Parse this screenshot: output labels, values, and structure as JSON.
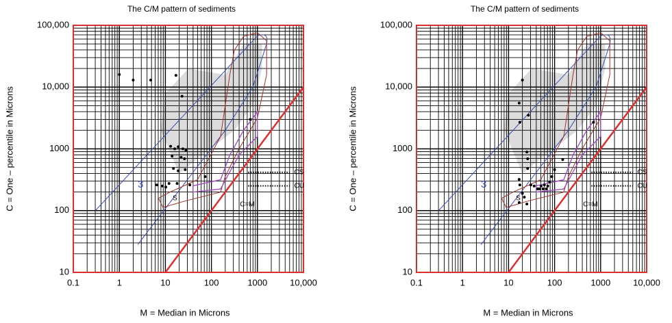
{
  "chart_data": [
    {
      "type": "scatter",
      "title": "The C/M pattern of sediments",
      "xlabel": "M = Median in Microns",
      "ylabel": "C = One  –  percentile  in  Microns",
      "xscale": "log",
      "yscale": "log",
      "xlim": [
        0.1,
        10000
      ],
      "ylim": [
        10,
        100000
      ],
      "xticks": [
        0.1,
        1,
        10,
        100,
        1000,
        {
          "value": 10000,
          "label": "10,000"
        }
      ],
      "yticks": [
        10,
        100,
        1000,
        {
          "value": 10000,
          "label": "10,000"
        },
        {
          "value": 100000,
          "label": "100,000"
        }
      ],
      "grid": true,
      "minor_grid": true,
      "color": "#000000",
      "annotations": [
        "3",
        "S",
        "CS",
        "CU",
        "C=M"
      ],
      "x": [
        1,
        2,
        4.8,
        17,
        23,
        13,
        16,
        19,
        24,
        28,
        14,
        22,
        26,
        15,
        19,
        27,
        6.5,
        8.6,
        10.2,
        12,
        18,
        34,
        73,
        700
      ],
      "values": [
        16000,
        13000,
        13000,
        15500,
        7100,
        1100,
        1000,
        1080,
        1000,
        940,
        760,
        730,
        690,
        480,
        440,
        460,
        260,
        250,
        240,
        275,
        275,
        260,
        355,
        3000
      ]
    },
    {
      "type": "scatter",
      "title": "The C/M pattern of sediments",
      "xlabel": "M = Median in Microns",
      "ylabel": "C = One  –  percentile  in  Microns",
      "xscale": "log",
      "yscale": "log",
      "xlim": [
        0.1,
        10000
      ],
      "ylim": [
        10,
        100000
      ],
      "xticks": [
        0.1,
        1,
        10,
        100,
        1000,
        {
          "value": 10000,
          "label": "10,000"
        }
      ],
      "yticks": [
        10,
        100,
        1000,
        {
          "value": 10000,
          "label": "10,000"
        },
        {
          "value": 100000,
          "label": "100,000"
        }
      ],
      "grid": true,
      "minor_grid": true,
      "color": "#000000",
      "annotations": [
        "3",
        "S",
        "CS",
        "CU",
        "C=M"
      ],
      "x": [
        20,
        17,
        17.6,
        27,
        25,
        26,
        17,
        26,
        17.6,
        20,
        22,
        17,
        25,
        30.5,
        36,
        43,
        51,
        60,
        71,
        78,
        87,
        100,
        150,
        47,
        56,
        66,
        700
      ],
      "values": [
        13000,
        5500,
        2700,
        3500,
        890,
        690,
        320,
        480,
        260,
        190,
        165,
        135,
        128,
        260,
        250,
        225,
        250,
        260,
        250,
        290,
        355,
        460,
        670,
        225,
        225,
        225,
        2700
      ]
    }
  ]
}
